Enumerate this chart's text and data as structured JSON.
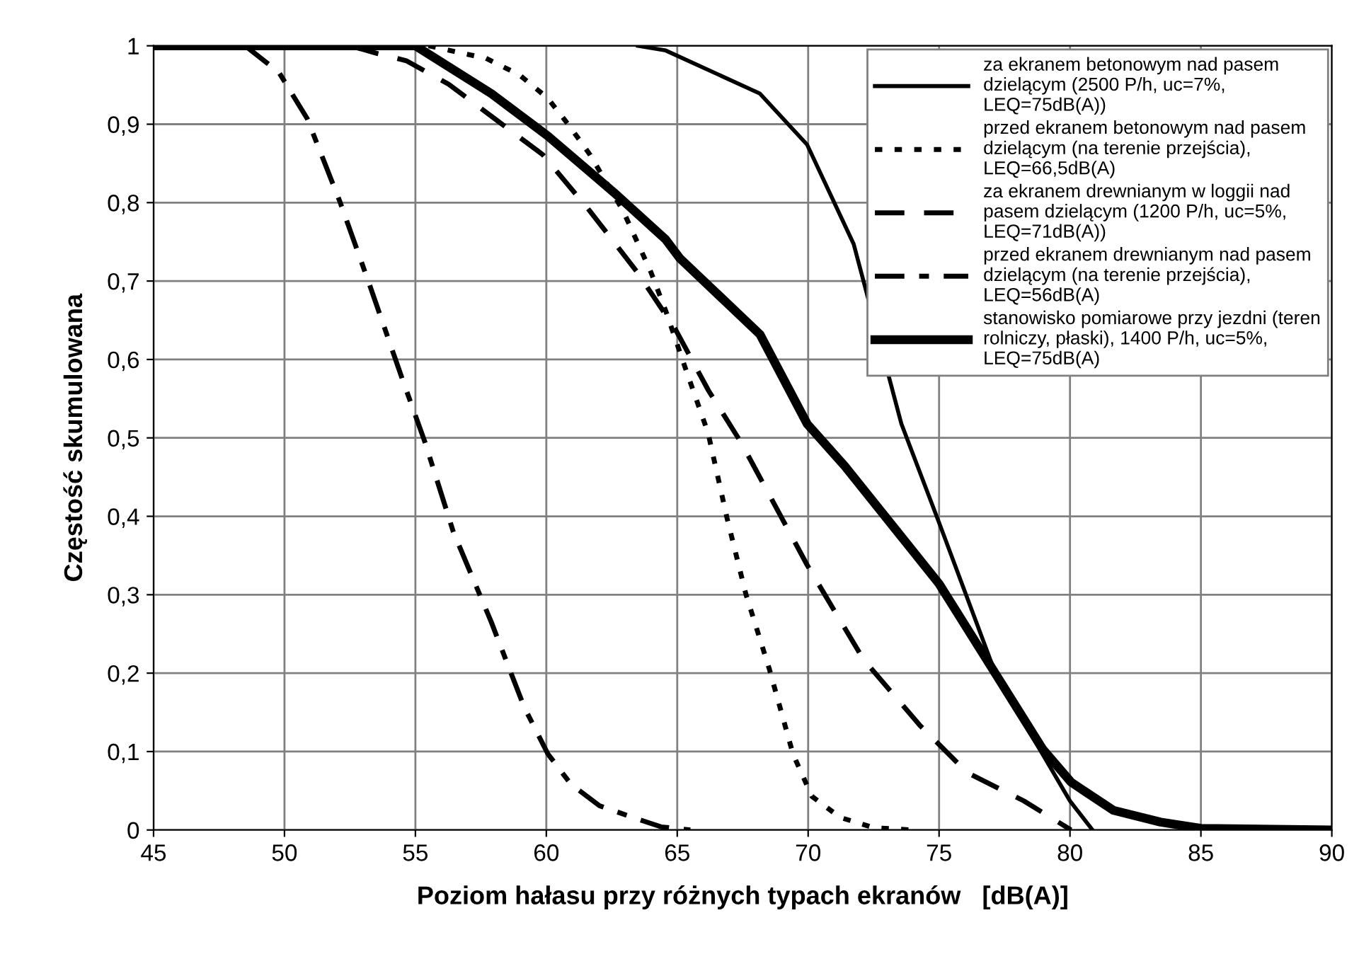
{
  "chart_data": {
    "type": "line",
    "xlabel": "Poziom hałasu przy różnych typach ekranów   [dB(A)]",
    "ylabel": "Częstość skumulowana",
    "xlim": [
      45,
      90
    ],
    "xticks": [
      45,
      50,
      55,
      60,
      65,
      70,
      75,
      80,
      85,
      90
    ],
    "ylim": [
      0,
      1
    ],
    "yticks": [
      0,
      {
        "value": 0.1,
        "label": "0,1"
      },
      {
        "value": 0.2,
        "label": "0,2"
      },
      {
        "value": 0.3,
        "label": "0,3"
      },
      {
        "value": 0.4,
        "label": "0,4"
      },
      {
        "value": 0.5,
        "label": "0,5"
      },
      {
        "value": 0.6,
        "label": "0,6"
      },
      {
        "value": 0.7,
        "label": "0,7"
      },
      {
        "value": 0.8,
        "label": "0,8"
      },
      {
        "value": 0.9,
        "label": "0,9"
      },
      1
    ],
    "grid": true,
    "legend": "top right",
    "marker": "none",
    "series": [
      {
        "name": "za ekranem betonowym nad pasem\ndzielącym (2500 P/h, uc=7%,\nLEQ=75dB(A))",
        "color": "#000000",
        "line_style": "solid",
        "x": [
          63.5,
          64.56,
          68.16,
          69.96,
          71.74,
          73.56,
          75.0,
          77.16,
          80.0,
          80.86
        ],
        "values": [
          1,
          0.994,
          0.939,
          0.874,
          0.747,
          0.518,
          0.392,
          0.199,
          0.037,
          0
        ]
      },
      {
        "name": "przed ekranem betonowym nad pasem\ndzielącym (na terenie przejścia),\nLEQ=66,5dB(A)",
        "color": "#000000",
        "line_style": "dotted",
        "x": [
          55.5,
          57.7,
          58.97,
          60.06,
          60.9,
          61.67,
          62.94,
          64.0,
          64.56,
          65.3,
          66.18,
          66.9,
          67.62,
          68.52,
          69.42,
          70.14,
          71.22,
          72.5,
          74
        ],
        "values": [
          1,
          0.984,
          0.963,
          0.933,
          0.897,
          0.861,
          0.789,
          0.711,
          0.662,
          0.59,
          0.506,
          0.398,
          0.301,
          0.205,
          0.097,
          0.043,
          0.016,
          0.003,
          0
        ]
      },
      {
        "name": "za ekranem drewnianym w loggii nad\npasem dzielącym (1200 P/h, uc=5%,\nLEQ=71dB(A))",
        "color": "#000000",
        "line_style": "dashed",
        "x": [
          52.5,
          53.57,
          54.65,
          56.27,
          58.07,
          59.87,
          61.67,
          63.48,
          64.92,
          66.2,
          67.44,
          69.96,
          72.12,
          74.28,
          76.08,
          78.24,
          80.04
        ],
        "values": [
          1,
          0.99,
          0.981,
          0.951,
          0.906,
          0.861,
          0.789,
          0.711,
          0.639,
          0.56,
          0.494,
          0.338,
          0.217,
          0.133,
          0.073,
          0.037,
          0
        ]
      },
      {
        "name": "przed ekranem drewnianym nad pasem\ndzielącym (na terenie przejścia),\nLEQ=56dB(A)",
        "color": "#000000",
        "line_style": "dashdot",
        "x": [
          48.5,
          49.79,
          50.87,
          52.13,
          53.21,
          54.47,
          55.37,
          56.45,
          57.9,
          59.15,
          60.06,
          60.95,
          62.03,
          63.3,
          64.38,
          65.5
        ],
        "values": [
          1,
          0.966,
          0.907,
          0.8,
          0.699,
          0.578,
          0.494,
          0.38,
          0.265,
          0.157,
          0.097,
          0.058,
          0.031,
          0.016,
          0.004,
          0
        ]
      },
      {
        "name": "stanowisko pomiarowe przy jezdni (teren\nrolniczy, płaski), 1400 P/h, uc=5%,\nLEQ=75dB(A)",
        "color": "#000000",
        "line_style": "solid",
        "x": [
          45,
          55.0,
          57.9,
          60.06,
          62.58,
          64.56,
          65.1,
          68.16,
          69.96,
          71.4,
          75.0,
          77.16,
          78.96,
          80.04,
          81.66,
          83.46,
          85.0,
          90
        ],
        "values": [
          1,
          1,
          0.939,
          0.885,
          0.813,
          0.753,
          0.729,
          0.632,
          0.518,
          0.464,
          0.314,
          0.199,
          0.103,
          0.061,
          0.025,
          0.01,
          0.002,
          0
        ]
      }
    ]
  }
}
